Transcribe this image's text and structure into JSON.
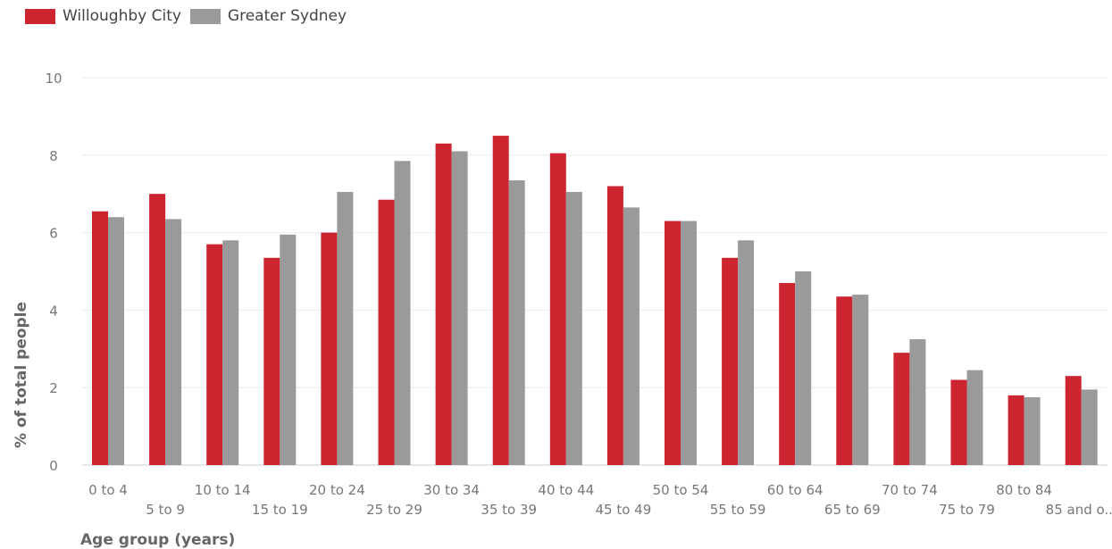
{
  "chart_data": {
    "type": "bar",
    "xlabel": "Age group (years)",
    "ylabel": "% of total people",
    "ylim": [
      0,
      10
    ],
    "yticks": [
      0,
      2,
      4,
      6,
      8,
      10
    ],
    "grid": true,
    "legend_position": "top-left",
    "categories": [
      "0 to 4",
      "5 to 9",
      "10 to 14",
      "15 to 19",
      "20 to 24",
      "25 to 29",
      "30 to 34",
      "35 to 39",
      "40 to 44",
      "45 to 49",
      "50 to 54",
      "55 to 59",
      "60 to 64",
      "65 to 69",
      "70 to 74",
      "75 to 79",
      "80 to 84",
      "85 and o..."
    ],
    "series": [
      {
        "name": "Willoughby City",
        "color": "#cc2530",
        "values": [
          6.55,
          7.0,
          5.7,
          5.35,
          6.0,
          6.85,
          8.3,
          8.5,
          8.05,
          7.2,
          6.3,
          5.35,
          4.7,
          4.35,
          2.9,
          2.2,
          1.8,
          2.3
        ]
      },
      {
        "name": "Greater Sydney",
        "color": "#9a9a9a",
        "values": [
          6.4,
          6.35,
          5.8,
          5.95,
          7.05,
          7.85,
          8.1,
          7.35,
          7.05,
          6.65,
          6.3,
          5.8,
          5.0,
          4.4,
          3.25,
          2.45,
          1.75,
          1.95
        ]
      }
    ]
  }
}
